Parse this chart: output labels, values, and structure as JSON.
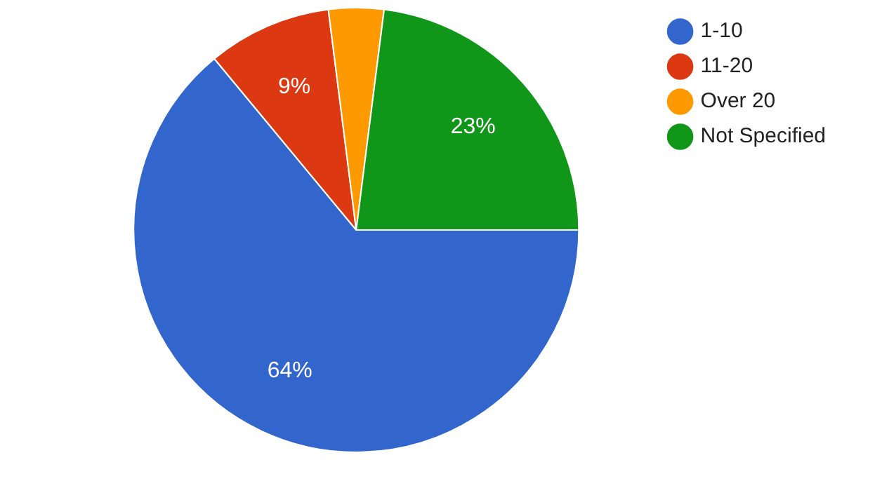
{
  "chart_data": {
    "type": "pie",
    "categories": [
      "1-10",
      "11-20",
      "Over 20",
      "Not Specified"
    ],
    "values": [
      64,
      9,
      4,
      23
    ],
    "colors": [
      "#3366cc",
      "#dc3912",
      "#ff9900",
      "#109618"
    ],
    "value_labels": [
      "64%",
      "9%",
      null,
      "23%"
    ],
    "legend": "top right"
  }
}
